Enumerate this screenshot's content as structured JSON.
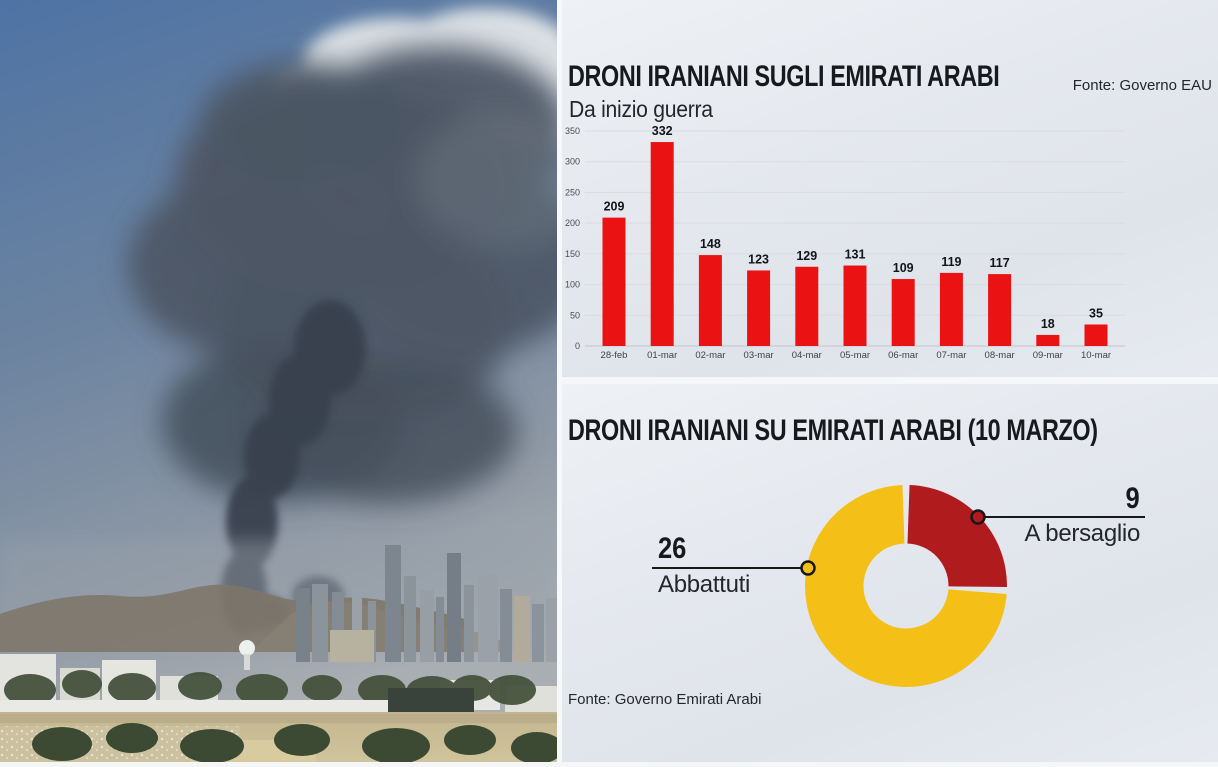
{
  "colors": {
    "bar_red": "#EA1212",
    "donut_red": "#B01B1E",
    "donut_yellow": "#F4C018",
    "callout_line": "#17181a",
    "title_text": "#17191d",
    "grid_line": "#d9dce1",
    "axis_line": "#c2c6cc",
    "panel_background": "#e5e9ef"
  },
  "photo": {
    "sky": "#4e73a4",
    "smoke": "#4d5765",
    "smoke_column": "#38414d",
    "clouds": "#e6e9ea",
    "mountains": "#7e7569",
    "buildings": "#8b939b",
    "sand": "#c6b993",
    "trees": "#3c4a33"
  },
  "panel_top": {
    "title": "DRONI IRANIANI SUGLI EMIRATI ARABI",
    "subtitle": "Da inizio guerra",
    "source": "Fonte: Governo EAU"
  },
  "panel_bottom": {
    "title": "DRONI IRANIANI SU EMIRATI ARABI (10 MARZO)",
    "source": "Fonte: Governo Emirati Arabi"
  },
  "chart_data": [
    {
      "type": "bar",
      "title": "DRONI IRANIANI SUGLI EMIRATI ARABI",
      "subtitle": "Da inizio guerra",
      "source": "Fonte: Governo EAU",
      "categories": [
        "28-feb",
        "01-mar",
        "02-mar",
        "03-mar",
        "04-mar",
        "05-mar",
        "06-mar",
        "07-mar",
        "08-mar",
        "09-mar",
        "10-mar"
      ],
      "values": [
        209,
        332,
        148,
        123,
        129,
        131,
        109,
        119,
        117,
        18,
        35
      ],
      "xlabel": "",
      "ylabel": "",
      "ylim": [
        0,
        350
      ],
      "ytick_step": 50,
      "grid": true,
      "value_labels": true,
      "bar_color": "#EA1212",
      "legend": "none"
    },
    {
      "type": "pie",
      "subtype": "donut",
      "title": "DRONI IRANIANI SU EMIRATI ARABI (10 MARZO)",
      "source": "Fonte: Governo Emirati Arabi",
      "start_angle_deg": 0,
      "direction": "clockwise",
      "slices": [
        {
          "label": "A bersaglio",
          "value": 9,
          "color": "#B01B1E",
          "callout_side": "right"
        },
        {
          "label": "Abbattuti",
          "value": 26,
          "color": "#F4C018",
          "callout_side": "left"
        }
      ]
    }
  ]
}
